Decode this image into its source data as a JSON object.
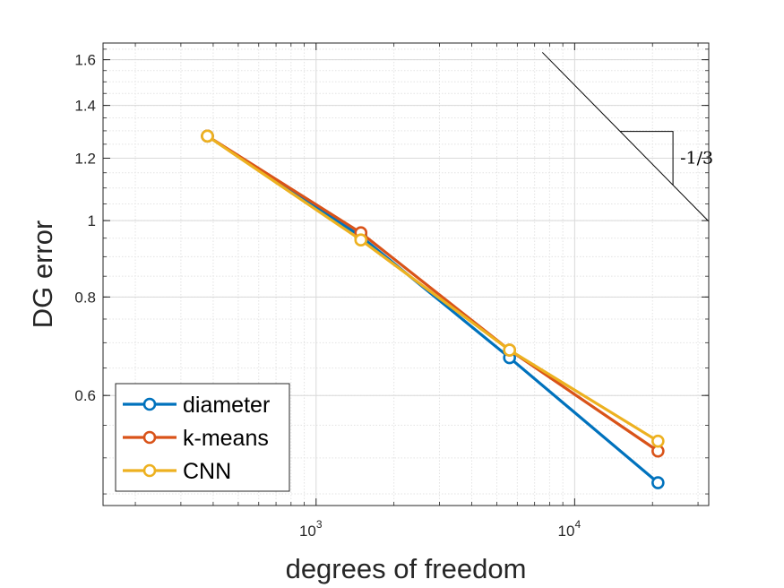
{
  "chart_data": {
    "type": "line",
    "xlabel": "degrees of freedom",
    "ylabel": "DG error",
    "xscale": "log",
    "yscale": "log",
    "xlim": [
      150,
      33000
    ],
    "ylim": [
      0.435,
      1.68
    ],
    "grid": true,
    "minor_grid": true,
    "legend_position": "bottom-left",
    "xticks": [
      {
        "value": 1000,
        "base": "10",
        "exp": "3"
      },
      {
        "value": 10000,
        "base": "10",
        "exp": "4"
      }
    ],
    "yticks": [
      {
        "value": 0.6,
        "label": "0.6"
      },
      {
        "value": 0.8,
        "label": "0.8"
      },
      {
        "value": 1.0,
        "label": "1"
      },
      {
        "value": 1.2,
        "label": "1.2"
      },
      {
        "value": 1.4,
        "label": "1.4"
      },
      {
        "value": 1.6,
        "label": "1.6"
      }
    ],
    "series": [
      {
        "name": "diameter",
        "color": "#0072BD",
        "x": [
          380,
          1490,
          5600,
          21000
        ],
        "y": [
          1.28,
          0.955,
          0.67,
          0.465
        ]
      },
      {
        "name": "k-means",
        "color": "#D95319",
        "x": [
          380,
          1490,
          5600,
          21000
        ],
        "y": [
          1.28,
          0.965,
          0.685,
          0.51
        ]
      },
      {
        "name": "CNN",
        "color": "#EDB120",
        "x": [
          380,
          1490,
          5600,
          21000
        ],
        "y": [
          1.28,
          0.945,
          0.685,
          0.525
        ]
      }
    ],
    "slope_triangle": {
      "label": "-1/3",
      "slope": -0.3333
    }
  }
}
